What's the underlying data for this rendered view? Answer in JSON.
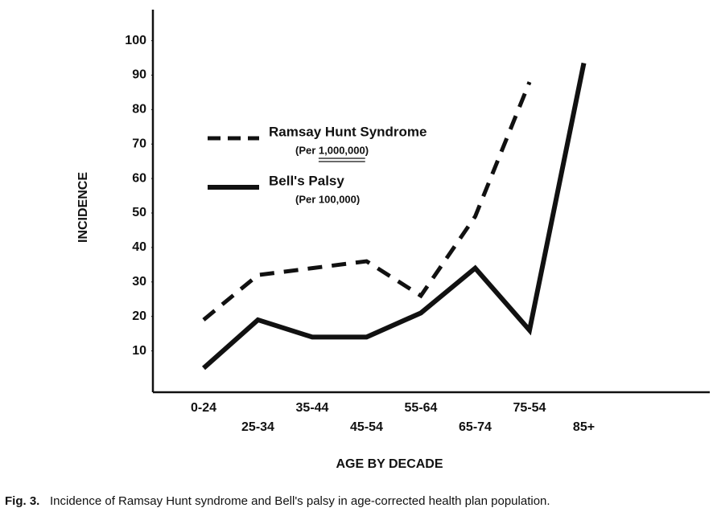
{
  "chart_data": {
    "type": "line",
    "y_label": "INCIDENCE",
    "x_label": "AGE BY DECADE",
    "caption_label": "Fig. 3.",
    "caption": "Incidence of Ramsay Hunt syndrome and Bell's palsy in age-corrected health plan population.",
    "categories": [
      "0-24",
      "25-34",
      "35-44",
      "45-54",
      "55-64",
      "65-74",
      "75-54",
      "85+"
    ],
    "series": [
      {
        "name": "Ramsay Hunt Syndrome",
        "note": "(Per 1,000,000)",
        "color": "#111111",
        "dashed": true,
        "values": [
          19,
          32,
          34,
          36,
          26,
          49,
          88,
          null
        ]
      },
      {
        "name": "Bell's Palsy",
        "note": "(Per 100,000)",
        "color": "#111111",
        "dashed": false,
        "values": [
          5,
          19,
          14,
          14,
          21,
          34,
          16,
          93.5
        ]
      }
    ],
    "ylim": [
      -2,
      109
    ],
    "yticks": [
      10,
      20,
      30,
      40,
      50,
      60,
      70,
      80,
      90,
      100
    ],
    "grid": false
  }
}
